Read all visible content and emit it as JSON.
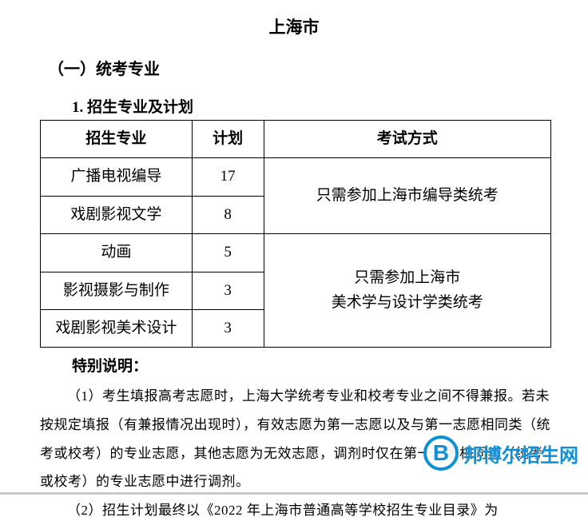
{
  "title": "上海市",
  "section_heading": "（一）统考专业",
  "subsection_heading": "1. 招生专业及计划",
  "table": {
    "columns": [
      "招生专业",
      "计划",
      "考试方式"
    ],
    "rows": [
      {
        "major": "广播电视编导",
        "plan": "17"
      },
      {
        "major": "戏剧影视文学",
        "plan": "8"
      },
      {
        "major": "动画",
        "plan": "5"
      },
      {
        "major": "影视摄影与制作",
        "plan": "3"
      },
      {
        "major": "戏剧影视美术设计",
        "plan": "3"
      }
    ],
    "exam_cell_1": "只需参加上海市编导类统考",
    "exam_cell_2_line1": "只需参加上海市",
    "exam_cell_2_line2": "美术学与设计学类统考",
    "border_color": "#000000",
    "font_size": 19
  },
  "note_heading": "特别说明：",
  "note_paragraphs": [
    "（1）考生填报高考志愿时，上海大学统考专业和校考专业之间不得兼报。若未按规定填报（有兼报情况出现时），有效志愿为第一志愿以及与第一志愿相同类（统考或校考）的专业志愿，其他志愿为无效志愿，调剂时仅在第一志愿相同类（统考或校考）的专业志愿中进行调剂。",
    "（2）招生计划最终以《2022 年上海市普通高等学校招生专业目录》为"
  ],
  "watermark": {
    "letter": "B",
    "text": "邦博尔招生网",
    "color": "#0f8fd6"
  },
  "colors": {
    "text": "#000000",
    "background": "#ffffff",
    "bottom_line": "#c9c9c9"
  }
}
